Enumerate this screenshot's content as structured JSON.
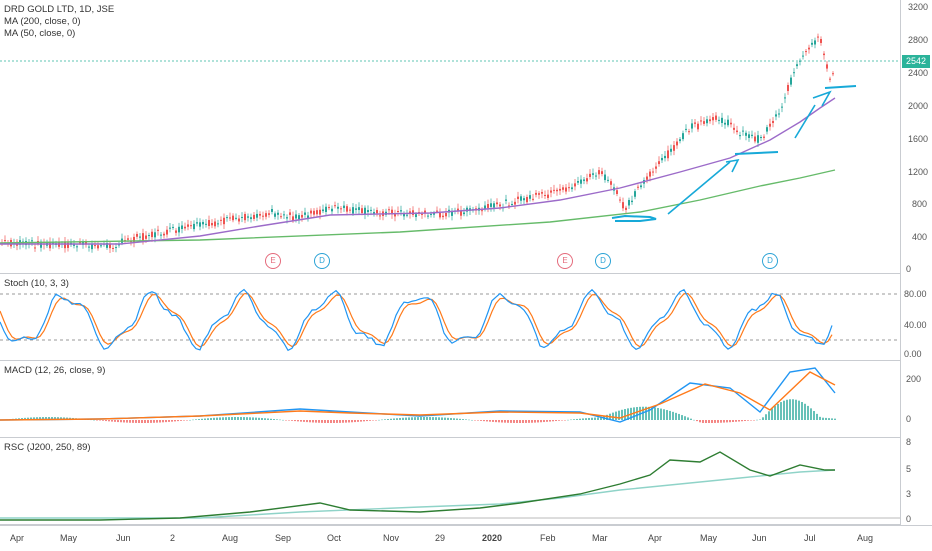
{
  "main_pane": {
    "legend": [
      "DRD GOLD LTD, 1D, JSE",
      "MA (200, close, 0)",
      "MA (50, close, 0)"
    ],
    "price_ticks": [
      "3200",
      "2800",
      "2400",
      "2000",
      "1600",
      "1200",
      "800",
      "400",
      "0"
    ],
    "last_price": "2542",
    "events": [
      {
        "label": "E",
        "type": "e"
      },
      {
        "label": "D",
        "type": "d"
      },
      {
        "label": "E",
        "type": "e"
      },
      {
        "label": "D",
        "type": "d"
      },
      {
        "label": "D",
        "type": "d"
      }
    ]
  },
  "stoch_pane": {
    "legend": "Stoch (10, 3, 3)",
    "ticks": [
      "80.00",
      "40.00",
      "0.00"
    ]
  },
  "macd_pane": {
    "legend": "MACD (12, 26, close, 9)",
    "ticks": [
      "200",
      "0"
    ]
  },
  "rsc_pane": {
    "legend": "RSC (J200, 250, 89)",
    "ticks": [
      "8",
      "5",
      "3",
      "0"
    ]
  },
  "time_axis": [
    "Apr",
    "May",
    "Jun",
    "2",
    "Aug",
    "Sep",
    "Oct",
    "Nov",
    "29",
    "2020",
    "Feb",
    "Mar",
    "Apr",
    "May",
    "Jun",
    "Jul",
    "Aug"
  ],
  "colors": {
    "up": "#26a69a",
    "down": "#ef5350",
    "ma200": "#66bb6a",
    "ma50": "#9c6bc9",
    "stoch_k": "#2196f3",
    "stoch_d": "#ff7a1a",
    "rsc": "#2e7d32",
    "rsc_ma": "#8fd3c8",
    "annotation": "#17a9d8"
  }
}
